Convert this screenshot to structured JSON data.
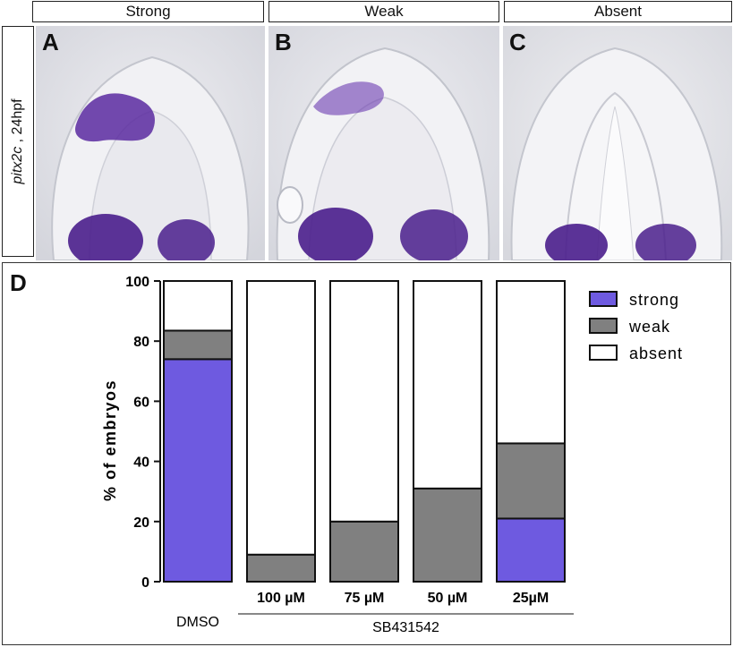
{
  "headers": [
    "Strong",
    "Weak",
    "Absent"
  ],
  "side_label": {
    "gene": "pitx2c",
    "stage": " , 24hpf"
  },
  "panel_labels": [
    "A",
    "B",
    "C"
  ],
  "chart_panel_label": "D",
  "colors": {
    "strong": "#6e5ae0",
    "weak": "#808080",
    "absent": "#ffffff",
    "stain": "#5a2aa0"
  },
  "chart_data": {
    "type": "bar",
    "stacked": true,
    "categories": [
      "DMSO",
      "100 µM",
      "75 µM",
      "50 µM",
      "25µM"
    ],
    "group_label": "SB431542",
    "series": [
      {
        "name": "strong",
        "color": "#6e5ae0",
        "values": [
          74,
          0,
          0,
          0,
          21
        ]
      },
      {
        "name": "weak",
        "color": "#808080",
        "values": [
          9.5,
          9,
          20,
          31,
          25
        ]
      },
      {
        "name": "absent",
        "color": "#ffffff",
        "values": [
          16.5,
          91,
          80,
          69,
          54
        ]
      }
    ],
    "ylabel": "% of embryos",
    "ylim": [
      0,
      100
    ],
    "yticks": [
      0,
      20,
      40,
      60,
      80,
      100
    ],
    "legend_position": "top-right",
    "grid": false
  }
}
